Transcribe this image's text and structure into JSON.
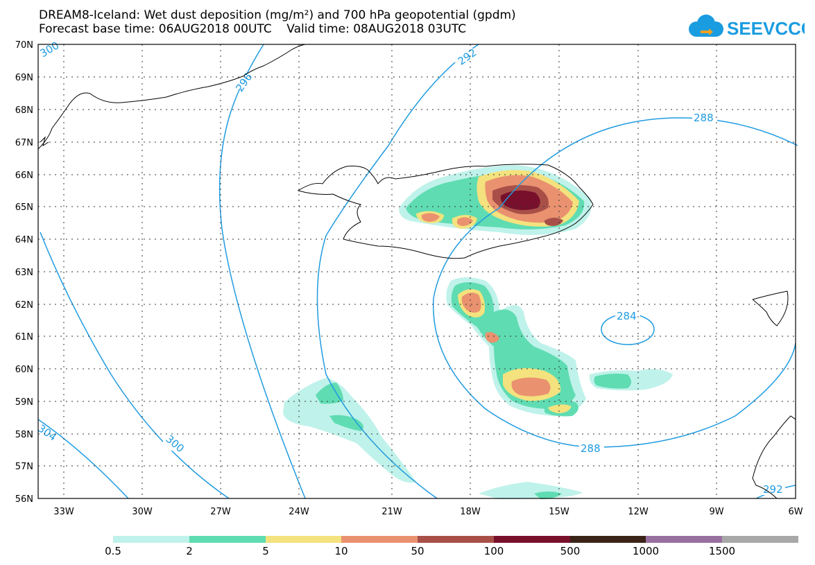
{
  "header": {
    "title_line1": "DREAM8-Iceland: Wet dust deposition (mg/m²) and 700 hPa geopotential (gpdm)",
    "title_line2": "Forecast base time: 06AUG2018 00UTC    Valid time: 08AUG2018 03UTC",
    "logo_text": "SEEVCCC",
    "logo_color": "#1a9ce0"
  },
  "map": {
    "lat_labels": [
      "70N",
      "69N",
      "68N",
      "67N",
      "66N",
      "65N",
      "64N",
      "63N",
      "62N",
      "61N",
      "60N",
      "59N",
      "58N",
      "57N",
      "56N"
    ],
    "lon_labels": [
      "33W",
      "30W",
      "27W",
      "24W",
      "21W",
      "18W",
      "15W",
      "12W",
      "9W",
      "6W"
    ],
    "contour_labels": [
      "300",
      "296",
      "292",
      "288",
      "288",
      "284",
      "300",
      "304",
      "292"
    ],
    "contour_color": "#1f9be0"
  },
  "legend": {
    "labels": [
      "0.5",
      "2",
      "5",
      "10",
      "50",
      "100",
      "500",
      "1000",
      "1500"
    ],
    "colors": [
      "#bff2ea",
      "#5fdcb2",
      "#f4e27e",
      "#ea9270",
      "#a85048",
      "#78102c",
      "#3a2418",
      "#9870a0",
      "#a8a8a8"
    ]
  }
}
